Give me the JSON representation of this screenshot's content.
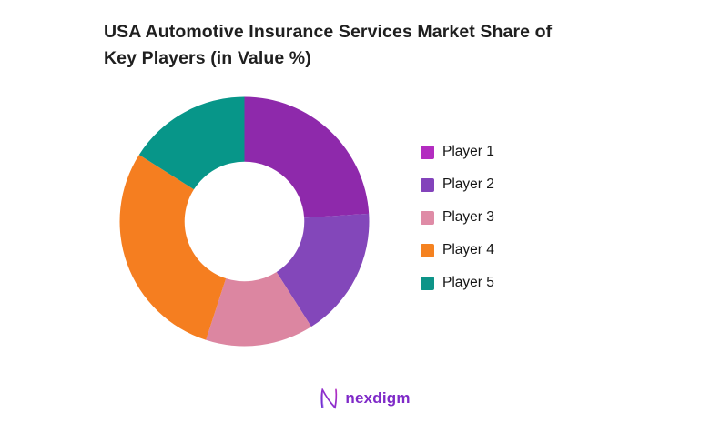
{
  "title": {
    "line1": "USA Automotive Insurance Services Market Share of",
    "line2": "Key Players (in Value %)"
  },
  "chart_data": {
    "type": "pie",
    "subtype": "donut",
    "title": "USA Automotive Insurance Services Market Share of Key Players (in Value %)",
    "categories": [
      "Player 1",
      "Player 2",
      "Player 3",
      "Player 4",
      "Player 5"
    ],
    "values": [
      24,
      17,
      14,
      29,
      16
    ],
    "unit": "%",
    "colors": [
      "#8E29AB",
      "#8347BA",
      "#DC86A1",
      "#F57E20",
      "#079689"
    ],
    "start_angle_deg": -90,
    "direction": "clockwise",
    "inner_radius_ratio": 0.48,
    "data_labels": "none",
    "legend_position": "right",
    "grid": false
  },
  "legend": {
    "items": [
      {
        "label": "Player 1",
        "color": "#B32CC0"
      },
      {
        "label": "Player 2",
        "color": "#8343BB"
      },
      {
        "label": "Player 3",
        "color": "#DF8BA6"
      },
      {
        "label": "Player 4",
        "color": "#F58220"
      },
      {
        "label": "Player 5",
        "color": "#0D9488"
      }
    ]
  },
  "footer": {
    "brand": "nexdigm",
    "brand_color": "#7F2AC8"
  }
}
